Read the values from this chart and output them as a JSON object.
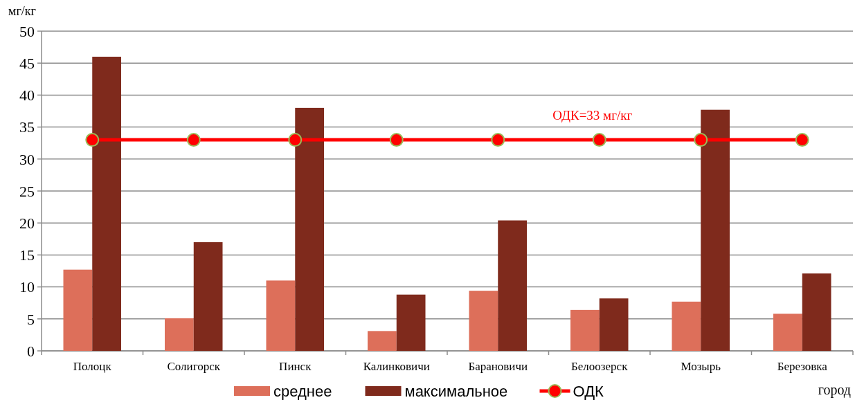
{
  "chart_data": {
    "type": "bar",
    "xlabel": "город",
    "ylabel": "мг/кг",
    "categories": [
      "Полоцк",
      "Солигорск",
      "Пинск",
      "Калинковичи",
      "Барановичи",
      "Белоозерск",
      "Мозырь",
      "Березовка"
    ],
    "series": [
      {
        "name": "среднее",
        "color": "#dd6f5a",
        "values": [
          12.7,
          5.1,
          11.0,
          3.1,
          9.4,
          6.4,
          7.7,
          5.8
        ]
      },
      {
        "name": "максимальное",
        "color": "#7f2a1c",
        "values": [
          46,
          17.0,
          38.0,
          8.8,
          20.4,
          8.2,
          37.7,
          12.1
        ]
      },
      {
        "name": "ОДК",
        "type": "line",
        "color": "#ff0000",
        "marker": "circle",
        "values": [
          33,
          33,
          33,
          33,
          33,
          33,
          33,
          33
        ]
      }
    ],
    "annotations": [
      "ОДК=33 мг/кг"
    ],
    "ylim": [
      0,
      50
    ],
    "yticks": [
      0,
      5,
      10,
      15,
      20,
      25,
      30,
      35,
      40,
      45,
      50
    ],
    "grid": "y",
    "legend": "bottom"
  }
}
